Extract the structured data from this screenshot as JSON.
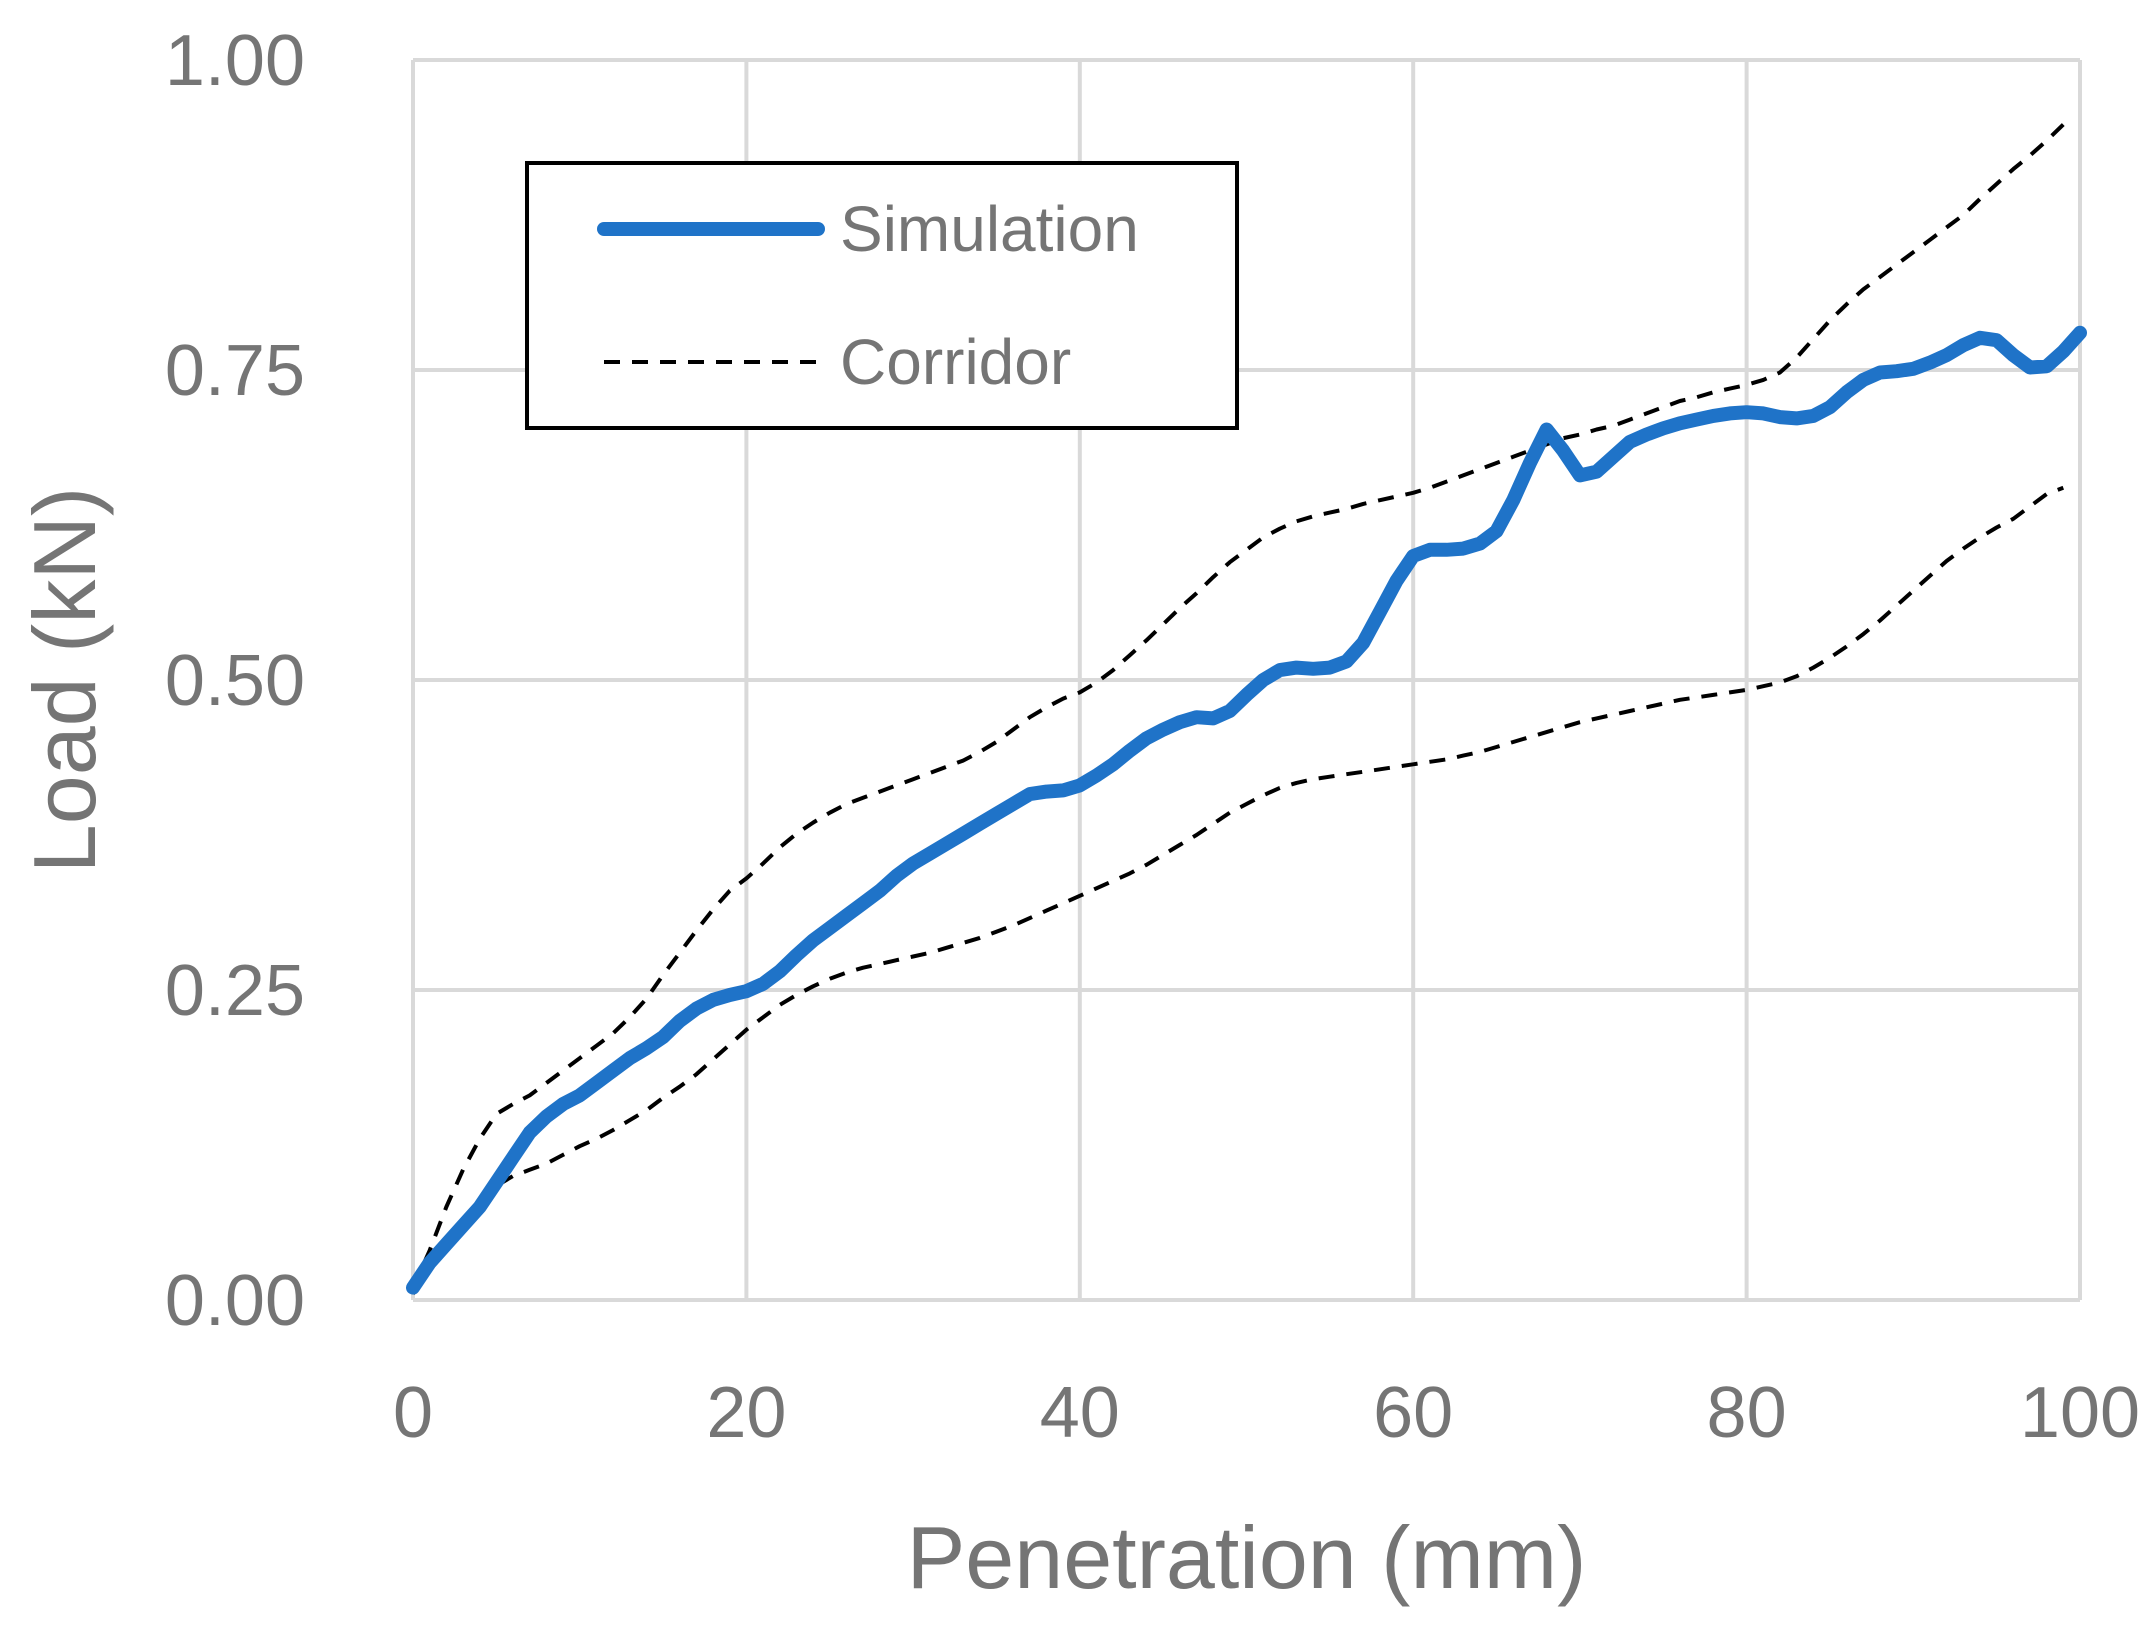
{
  "chart_data": {
    "type": "line",
    "title": "",
    "xlabel": "Penetration (mm)",
    "ylabel": "Load (kN)",
    "xlim": [
      0,
      100
    ],
    "ylim": [
      0,
      1.0
    ],
    "x_ticks": [
      "0",
      "20",
      "40",
      "60",
      "80",
      "100"
    ],
    "y_ticks": [
      "0.00",
      "0.25",
      "0.50",
      "0.75",
      "1.00"
    ],
    "x_tick_values": [
      0,
      20,
      40,
      60,
      80,
      100
    ],
    "y_tick_values": [
      0,
      0.25,
      0.5,
      0.75,
      1.0
    ],
    "grid": true,
    "legend_position": "top-left",
    "legend": [
      "Simulation",
      "Corridor"
    ],
    "colors": {
      "simulation": "#1f73c8",
      "corridor": "#000000",
      "grid": "#d9d9d9",
      "text": "#757575"
    },
    "series": [
      {
        "name": "Simulation",
        "style": "solid-thick",
        "x": [
          0,
          1,
          2,
          3,
          4,
          5,
          6,
          7,
          8,
          9,
          10,
          11,
          12,
          13,
          14,
          15,
          16,
          17,
          18,
          19,
          20,
          21,
          22,
          23,
          24,
          25,
          26,
          27,
          28,
          29,
          30,
          31,
          32,
          33,
          34,
          35,
          36,
          37,
          38,
          39,
          40,
          41,
          42,
          43,
          44,
          45,
          46,
          47,
          48,
          49,
          50,
          51,
          52,
          53,
          54,
          55,
          56,
          57,
          58,
          59,
          60,
          61,
          62,
          63,
          64,
          65,
          66,
          67,
          68,
          69,
          70,
          71,
          72,
          73,
          74,
          75,
          76,
          77,
          78,
          79,
          80,
          81,
          82,
          83,
          84,
          85,
          86,
          87,
          88,
          89,
          90,
          91,
          92,
          93,
          94,
          95,
          96,
          97,
          98,
          99,
          100
        ],
        "values": [
          0.01,
          0.03,
          0.045,
          0.06,
          0.075,
          0.095,
          0.115,
          0.135,
          0.148,
          0.158,
          0.165,
          0.175,
          0.185,
          0.195,
          0.203,
          0.212,
          0.225,
          0.235,
          0.242,
          0.246,
          0.249,
          0.255,
          0.265,
          0.278,
          0.29,
          0.3,
          0.31,
          0.32,
          0.33,
          0.342,
          0.352,
          0.36,
          0.368,
          0.376,
          0.384,
          0.392,
          0.4,
          0.408,
          0.41,
          0.411,
          0.415,
          0.423,
          0.432,
          0.443,
          0.453,
          0.46,
          0.466,
          0.47,
          0.469,
          0.475,
          0.488,
          0.5,
          0.508,
          0.51,
          0.509,
          0.51,
          0.515,
          0.53,
          0.555,
          0.58,
          0.6,
          0.605,
          0.605,
          0.606,
          0.61,
          0.62,
          0.645,
          0.675,
          0.702,
          0.685,
          0.665,
          0.668,
          0.68,
          0.692,
          0.698,
          0.703,
          0.707,
          0.71,
          0.713,
          0.715,
          0.716,
          0.715,
          0.712,
          0.711,
          0.713,
          0.72,
          0.732,
          0.742,
          0.748,
          0.749,
          0.751,
          0.756,
          0.762,
          0.77,
          0.776,
          0.774,
          0.762,
          0.752,
          0.753,
          0.765,
          0.78
        ]
      },
      {
        "name": "Corridor",
        "style": "dashed-upper",
        "x": [
          0,
          1,
          2,
          3,
          4,
          5,
          6,
          7,
          8,
          9,
          10,
          11,
          12,
          13,
          14,
          15,
          16,
          17,
          18,
          19,
          20,
          21,
          22,
          23,
          24,
          25,
          26,
          27,
          28,
          29,
          30,
          31,
          32,
          33,
          34,
          35,
          36,
          37,
          38,
          39,
          40,
          41,
          42,
          43,
          44,
          45,
          46,
          47,
          48,
          49,
          50,
          51,
          52,
          53,
          54,
          55,
          56,
          57,
          58,
          59,
          60,
          61,
          62,
          63,
          64,
          65,
          66,
          67,
          68,
          69,
          70,
          71,
          72,
          73,
          74,
          75,
          76,
          77,
          78,
          79,
          80,
          81,
          82,
          83,
          84,
          85,
          86,
          87,
          88,
          89,
          90,
          91,
          92,
          93,
          94,
          95,
          96,
          97,
          98,
          99
        ],
        "values": [
          0.01,
          0.04,
          0.075,
          0.105,
          0.13,
          0.15,
          0.158,
          0.165,
          0.175,
          0.185,
          0.195,
          0.205,
          0.215,
          0.228,
          0.243,
          0.262,
          0.28,
          0.298,
          0.315,
          0.33,
          0.34,
          0.352,
          0.365,
          0.376,
          0.385,
          0.393,
          0.4,
          0.405,
          0.41,
          0.415,
          0.42,
          0.425,
          0.43,
          0.435,
          0.442,
          0.45,
          0.46,
          0.47,
          0.478,
          0.485,
          0.49,
          0.498,
          0.508,
          0.52,
          0.532,
          0.545,
          0.558,
          0.57,
          0.583,
          0.595,
          0.605,
          0.615,
          0.622,
          0.628,
          0.632,
          0.635,
          0.638,
          0.642,
          0.645,
          0.648,
          0.651,
          0.655,
          0.66,
          0.665,
          0.67,
          0.675,
          0.68,
          0.685,
          0.69,
          0.695,
          0.698,
          0.702,
          0.705,
          0.71,
          0.715,
          0.72,
          0.725,
          0.728,
          0.732,
          0.735,
          0.738,
          0.742,
          0.748,
          0.76,
          0.775,
          0.79,
          0.803,
          0.815,
          0.825,
          0.835,
          0.845,
          0.855,
          0.865,
          0.875,
          0.888,
          0.9,
          0.912,
          0.923,
          0.935,
          0.948
        ]
      },
      {
        "name": "Corridor",
        "style": "dashed-lower",
        "x": [
          0,
          1,
          2,
          3,
          4,
          5,
          6,
          7,
          8,
          9,
          10,
          11,
          12,
          13,
          14,
          15,
          16,
          17,
          18,
          19,
          20,
          21,
          22,
          23,
          24,
          25,
          26,
          27,
          28,
          29,
          30,
          31,
          32,
          33,
          34,
          35,
          36,
          37,
          38,
          39,
          40,
          41,
          42,
          43,
          44,
          45,
          46,
          47,
          48,
          49,
          50,
          51,
          52,
          53,
          54,
          55,
          56,
          57,
          58,
          59,
          60,
          61,
          62,
          63,
          64,
          65,
          66,
          67,
          68,
          69,
          70,
          71,
          72,
          73,
          74,
          75,
          76,
          77,
          78,
          79,
          80,
          81,
          82,
          83,
          84,
          85,
          86,
          87,
          88,
          89,
          90,
          91,
          92,
          93,
          94,
          95,
          96,
          97,
          98,
          99
        ],
        "values": [
          0.005,
          0.025,
          0.045,
          0.065,
          0.08,
          0.092,
          0.1,
          0.105,
          0.11,
          0.117,
          0.124,
          0.13,
          0.137,
          0.145,
          0.153,
          0.163,
          0.172,
          0.182,
          0.194,
          0.206,
          0.218,
          0.228,
          0.238,
          0.246,
          0.253,
          0.259,
          0.264,
          0.268,
          0.271,
          0.274,
          0.277,
          0.28,
          0.284,
          0.288,
          0.292,
          0.297,
          0.302,
          0.308,
          0.314,
          0.32,
          0.326,
          0.332,
          0.338,
          0.344,
          0.351,
          0.359,
          0.367,
          0.375,
          0.384,
          0.393,
          0.4,
          0.407,
          0.413,
          0.417,
          0.42,
          0.422,
          0.424,
          0.426,
          0.428,
          0.43,
          0.432,
          0.434,
          0.436,
          0.439,
          0.442,
          0.446,
          0.45,
          0.454,
          0.458,
          0.462,
          0.466,
          0.469,
          0.472,
          0.475,
          0.478,
          0.481,
          0.484,
          0.486,
          0.488,
          0.49,
          0.492,
          0.495,
          0.498,
          0.503,
          0.51,
          0.518,
          0.527,
          0.537,
          0.548,
          0.56,
          0.572,
          0.584,
          0.596,
          0.606,
          0.615,
          0.623,
          0.63,
          0.64,
          0.65,
          0.655
        ]
      }
    ]
  }
}
